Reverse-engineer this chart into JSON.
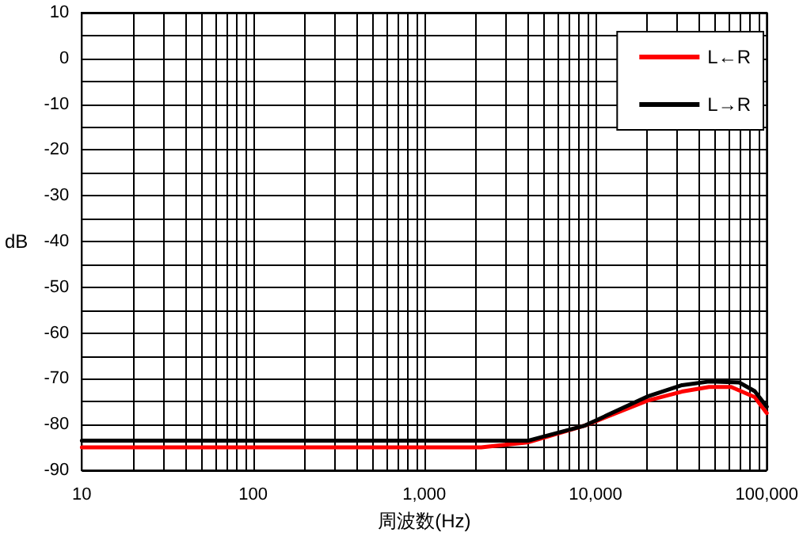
{
  "chart_data": {
    "type": "line",
    "xlabel": "周波数(Hz)",
    "ylabel": "dB",
    "log": "x",
    "grid": true,
    "legend": "top right",
    "marker": "none",
    "line_style": "solid",
    "xlim": [
      10,
      100000
    ],
    "xticks": [
      10,
      100,
      {
        "value": 1000,
        "label": "1,000"
      },
      {
        "value": 10000,
        "label": "10,000"
      },
      {
        "value": 100000,
        "label": "100,000"
      }
    ],
    "ylim": [
      -90,
      10
    ],
    "yticks": [
      -90,
      -80,
      -70,
      -60,
      -50,
      -40,
      -30,
      -20,
      -10,
      0,
      10
    ],
    "series": [
      {
        "name": "L←R",
        "color": "#ff0000",
        "x": [
          10,
          100,
          1000,
          2150,
          4000,
          8700,
          20000,
          32000,
          46000,
          62000,
          85000,
          100000
        ],
        "values": [
          -85,
          -85,
          -85,
          -85,
          -83.9,
          -80.2,
          -74.8,
          -72.8,
          -71.8,
          -71.8,
          -74,
          -77.5
        ]
      },
      {
        "name": "L→R",
        "color": "#000000",
        "x": [
          10,
          100,
          1000,
          4070,
          8700,
          20000,
          32000,
          46000,
          69000,
          85000,
          100000
        ],
        "values": [
          -83.5,
          -83.5,
          -83.5,
          -83.5,
          -80.2,
          -73.9,
          -71.4,
          -70.6,
          -70.8,
          -72.7,
          -76.1
        ]
      }
    ]
  }
}
